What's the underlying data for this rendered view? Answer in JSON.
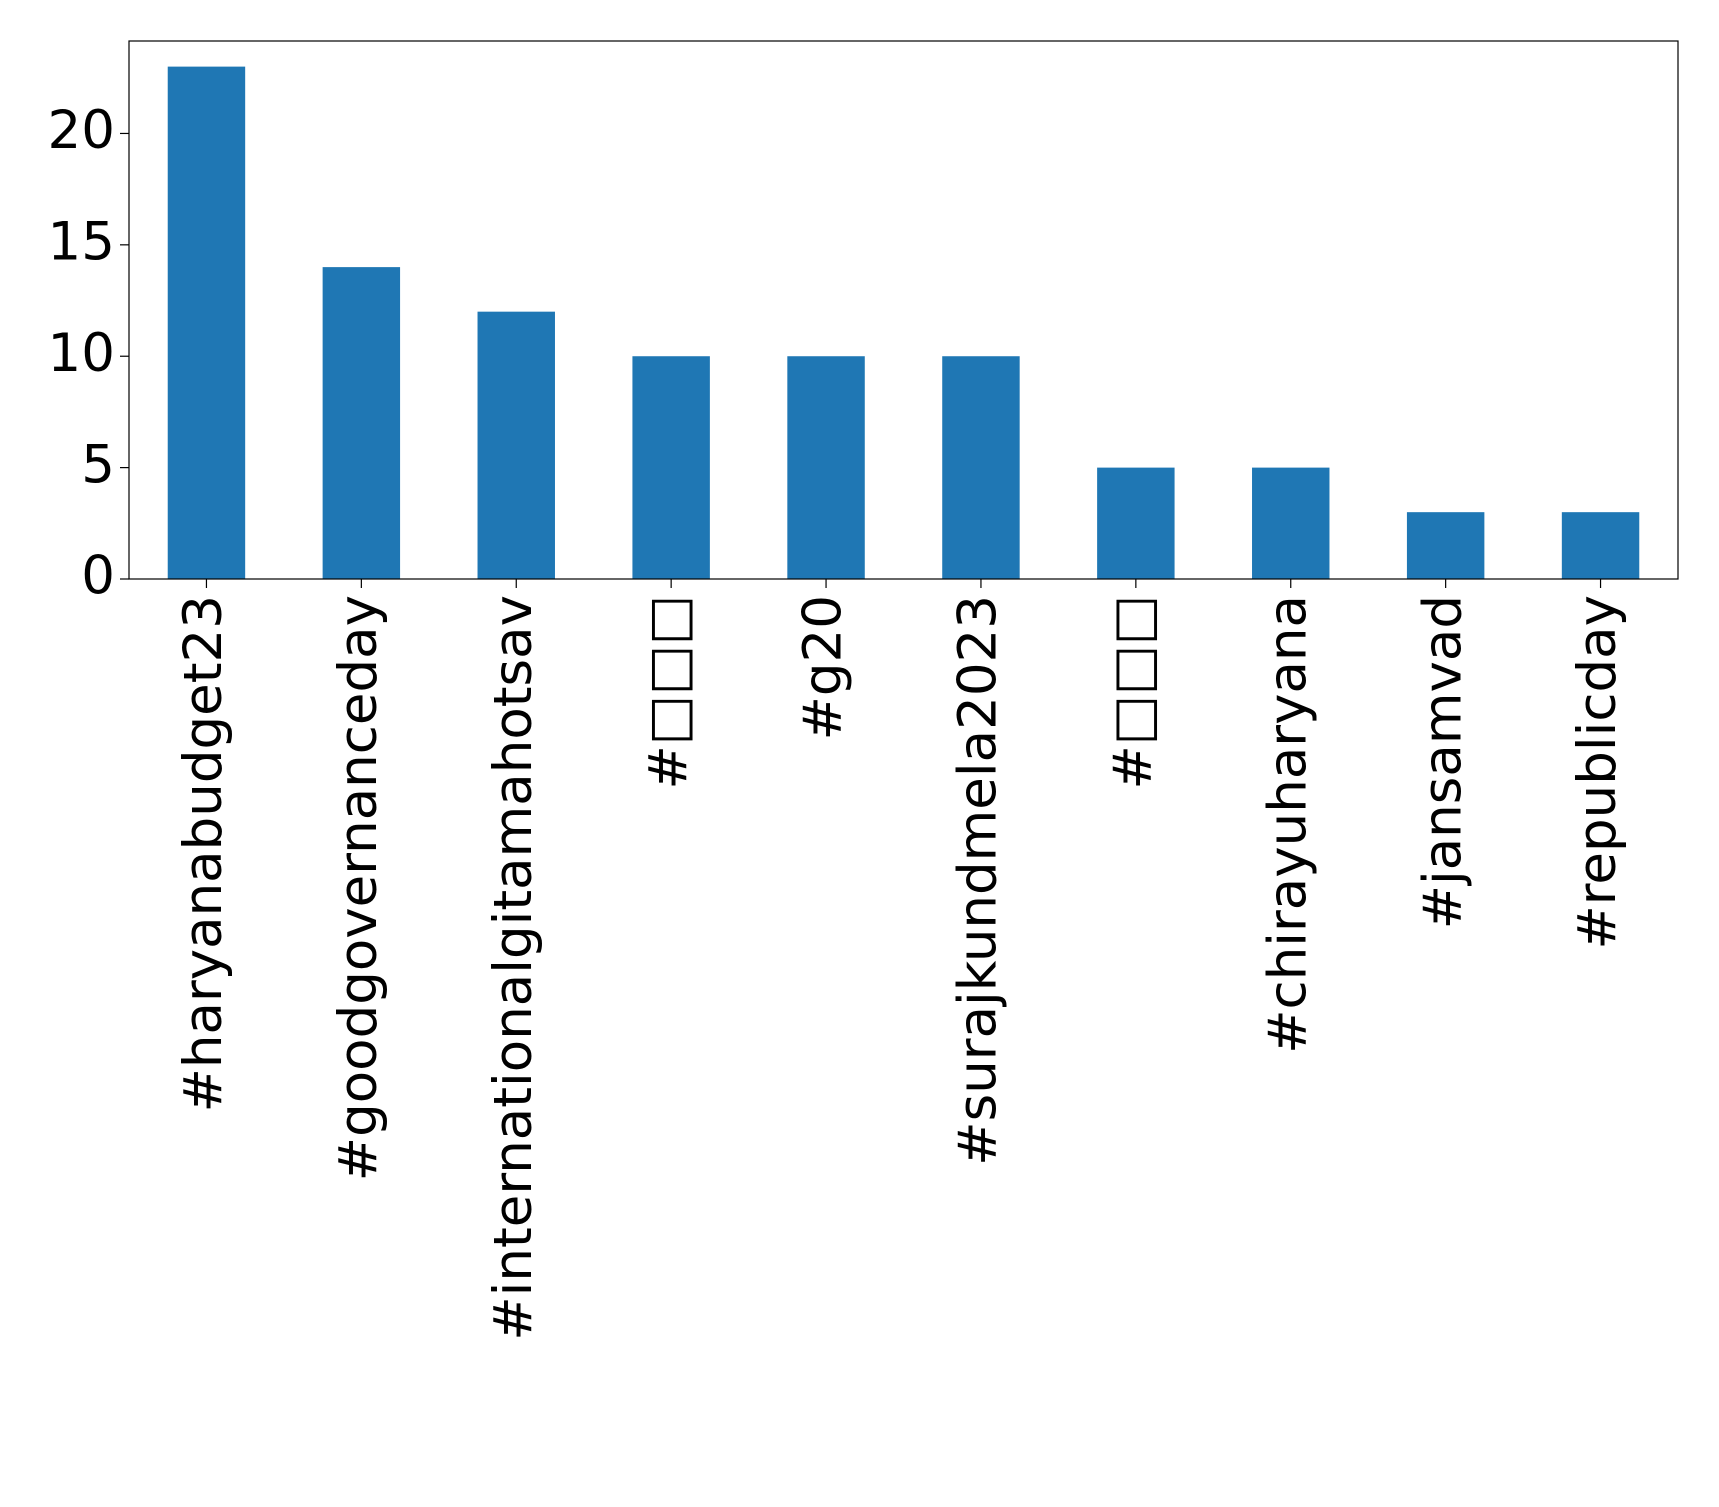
{
  "chart_data": {
    "type": "bar",
    "categories": [
      "#haryanabudget23",
      "#goodgovernanceday",
      "#internationalgitamahotsav",
      "#□□□",
      "#g20",
      "#surajkundmela2023",
      "#□□□",
      "#chirayuharyana",
      "#jansamvad",
      "#republicday"
    ],
    "values": [
      23,
      14,
      12,
      10,
      10,
      10,
      5,
      5,
      3,
      3
    ],
    "color": "#1f77b4",
    "ylim": [
      0,
      24.15
    ],
    "yticks": [
      0,
      5,
      10,
      15,
      20
    ],
    "grid": false
  }
}
